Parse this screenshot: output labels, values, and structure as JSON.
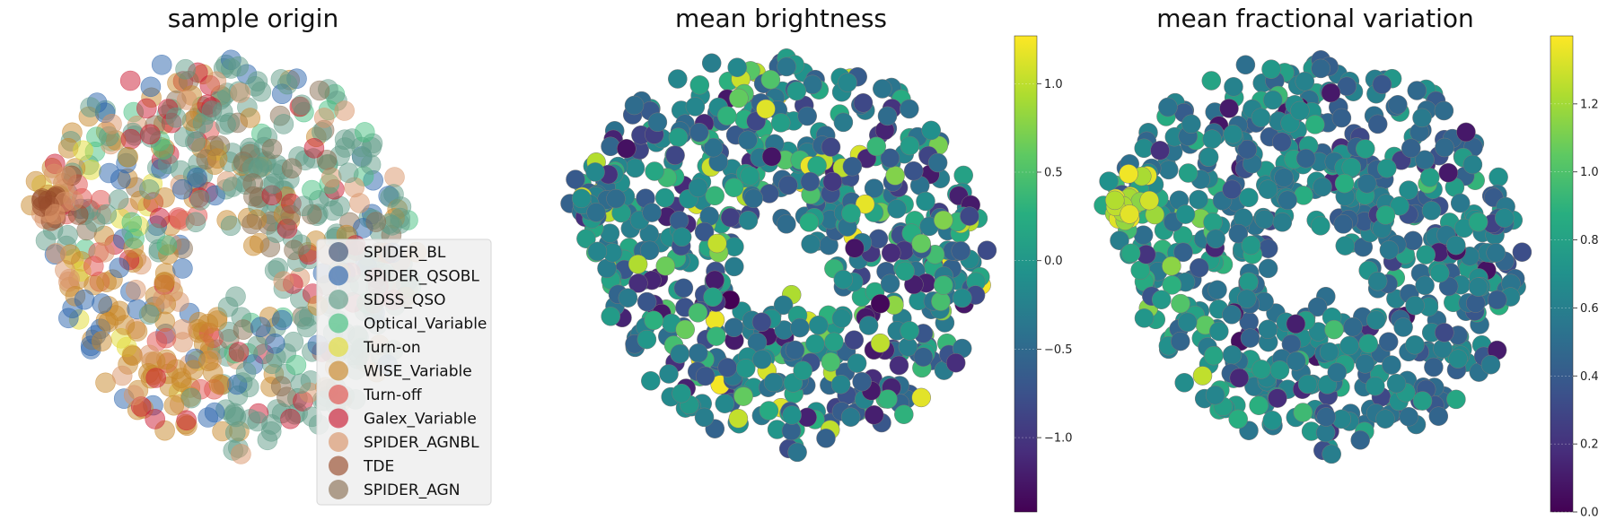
{
  "chart_data": [
    {
      "type": "scatter",
      "title": "sample origin",
      "xlabel": "",
      "ylabel": "",
      "axes": "off",
      "grid": false,
      "legend_position": "lower-right",
      "marker_alpha": 0.5,
      "series": [
        {
          "name": "SPIDER_BL",
          "color": "#3b4f72"
        },
        {
          "name": "SPIDER_QSOBL",
          "color": "#2a63ac"
        },
        {
          "name": "SDSS_QSO",
          "color": "#5f9c87"
        },
        {
          "name": "Optical_Variable",
          "color": "#45c080"
        },
        {
          "name": "Turn-on",
          "color": "#e2dc34"
        },
        {
          "name": "WISE_Variable",
          "color": "#c8872a"
        },
        {
          "name": "Turn-off",
          "color": "#e0504c"
        },
        {
          "name": "Galex_Variable",
          "color": "#cc1c34"
        },
        {
          "name": "SPIDER_AGNBL",
          "color": "#d99468"
        },
        {
          "name": "TDE",
          "color": "#96492a"
        },
        {
          "name": "SPIDER_AGN",
          "color": "#8a7054"
        }
      ]
    },
    {
      "type": "scatter",
      "title": "mean brightness",
      "xlabel": "",
      "ylabel": "",
      "axes": "off",
      "grid": false,
      "colormap": "viridis",
      "colorbar": {
        "range": [
          -1.42,
          1.27
        ],
        "ticks": [
          1.0,
          0.5,
          0.0,
          -0.5,
          -1.0
        ],
        "tick_labels": [
          "1.0",
          "0.5",
          "0.0",
          "−0.5",
          "−1.0"
        ]
      }
    },
    {
      "type": "scatter",
      "title": "mean fractional variation",
      "xlabel": "",
      "ylabel": "",
      "axes": "off",
      "grid": false,
      "colormap": "viridis",
      "colorbar": {
        "range": [
          0.0,
          1.4
        ],
        "ticks": [
          1.2,
          1.0,
          0.8,
          0.6,
          0.4,
          0.2,
          0.0
        ],
        "tick_labels": [
          "1.2",
          "1.0",
          "0.8",
          "0.6",
          "0.4",
          "0.2",
          "0.0"
        ]
      }
    }
  ]
}
